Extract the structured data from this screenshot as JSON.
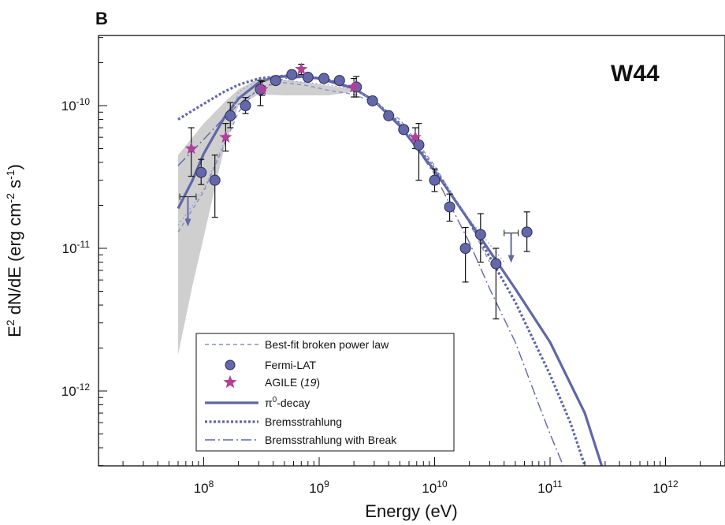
{
  "chart_data": {
    "type": "scatter",
    "panel_label": "B",
    "source_label": "W44",
    "xlabel": "Energy (eV)",
    "ylabel": "E² dN/dE (erg cm⁻² s⁻¹)",
    "ylabel_parts": {
      "base": "E",
      "sup1": "2",
      "mid": " dN/dE (erg cm",
      "sup2": "-2",
      "s": " s",
      "sup3": "-1",
      "end": ")"
    },
    "x_scale": "log",
    "y_scale": "log",
    "xlim": [
      12000000.0,
      2200000000000.0
    ],
    "ylim": [
      3e-13,
      5.2e-10
    ],
    "x_ticks": [
      {
        "value": 100000000.0,
        "base": "10",
        "exp": "8"
      },
      {
        "value": 1000000000.0,
        "base": "10",
        "exp": "9"
      },
      {
        "value": 10000000000.0,
        "base": "10",
        "exp": "10"
      },
      {
        "value": 100000000000.0,
        "base": "10",
        "exp": "11"
      },
      {
        "value": 1000000000000.0,
        "base": "10",
        "exp": "12"
      }
    ],
    "y_ticks": [
      {
        "value": 1e-10,
        "base": "10",
        "exp": "-10"
      },
      {
        "value": 1e-11,
        "base": "10",
        "exp": "-11"
      },
      {
        "value": 1e-12,
        "base": "10",
        "exp": "-12"
      }
    ],
    "grid": false,
    "legend_position": "bottom-left",
    "colors": {
      "fermi": "#6468a8",
      "fermi_edge": "#2a2d5a",
      "agile": "#b0409a",
      "model": "#6166a6",
      "band": "#cfcfcf",
      "errorbar": "#111111"
    },
    "series": [
      {
        "name": "Best-fit broken power law",
        "style": "thin-dashed",
        "x": [
          60000000.0,
          100000000.0,
          200000000.0,
          300000000.0,
          500000000.0,
          800000000.0,
          1200000000.0,
          2000000000.0,
          3000000000.0,
          5000000000.0,
          10000000000.0,
          20000000000.0,
          30000000000.0
        ],
        "y": [
          1.3e-11,
          2.5e-11,
          9e-11,
          1.35e-10,
          1.45e-10,
          1.38e-10,
          1.28e-10,
          1.2e-10,
          1.05e-10,
          8e-11,
          3.8e-11,
          1.5e-11,
          8e-12
        ]
      },
      {
        "name": "Fermi-LAT",
        "style": "marker-circle",
        "points": [
          {
            "x": 95000000.0,
            "y": 3.4e-11,
            "lo": 2.8e-11,
            "hi": 4.2e-11
          },
          {
            "x": 125000000.0,
            "y": 3e-11,
            "lo": 1.65e-11,
            "hi": 4.5e-11
          },
          {
            "x": 170000000.0,
            "y": 8.5e-11,
            "lo": 7e-11,
            "hi": 1.05e-10
          },
          {
            "x": 230000000.0,
            "y": 1e-10,
            "lo": 8.8e-11,
            "hi": 1.14e-10
          },
          {
            "x": 310000000.0,
            "y": 1.3e-10,
            "lo": 1e-10,
            "hi": 1.5e-10
          },
          {
            "x": 420000000.0,
            "y": 1.5e-10
          },
          {
            "x": 580000000.0,
            "y": 1.65e-10
          },
          {
            "x": 800000000.0,
            "y": 1.58e-10
          },
          {
            "x": 1100000000.0,
            "y": 1.55e-10
          },
          {
            "x": 1500000000.0,
            "y": 1.5e-10
          },
          {
            "x": 2100000000.0,
            "y": 1.35e-10,
            "lo": 1.15e-10,
            "hi": 1.6e-10
          },
          {
            "x": 2900000000.0,
            "y": 1.08e-10
          },
          {
            "x": 4000000000.0,
            "y": 8.5e-11
          },
          {
            "x": 5400000000.0,
            "y": 6.8e-11
          },
          {
            "x": 7300000000.0,
            "y": 5.3e-11,
            "lo": 3e-11,
            "hi": 7.5e-11
          },
          {
            "x": 10000000000.0,
            "y": 3e-11,
            "lo": 2.5e-11,
            "hi": 3.6e-11
          },
          {
            "x": 13500000000.0,
            "y": 1.95e-11,
            "lo": 1.55e-11,
            "hi": 2.4e-11
          },
          {
            "x": 18500000000.0,
            "y": 1e-11,
            "lo": 5.8e-12,
            "hi": 1.4e-11
          },
          {
            "x": 25000000000.0,
            "y": 1.25e-11,
            "lo": 8e-12,
            "hi": 1.75e-11
          },
          {
            "x": 34000000000.0,
            "y": 7.8e-12,
            "lo": 3.2e-12,
            "hi": 1e-11
          },
          {
            "x": 63000000000.0,
            "y": 1.3e-11,
            "lo": 9.5e-12,
            "hi": 1.8e-11
          }
        ],
        "upper_limits": [
          {
            "x": 73000000.0,
            "y": 2.3e-11,
            "xlo": 62000000.0,
            "xhi": 86000000.0
          },
          {
            "x": 46000000000.0,
            "y": 1.28e-11,
            "xlo": 40000000000.0,
            "xhi": 53000000000.0
          }
        ]
      },
      {
        "name": "AGILE (19)",
        "name_parts": {
          "text": "AGILE (",
          "ref": "19",
          "end": ")"
        },
        "style": "marker-star",
        "points": [
          {
            "x": 78000000.0,
            "y": 5e-11,
            "lo": 3.2e-11,
            "hi": 7e-11
          },
          {
            "x": 155000000.0,
            "y": 6e-11,
            "lo": 4.8e-11,
            "hi": 7.5e-11
          },
          {
            "x": 320000000.0,
            "y": 1.3e-10,
            "lo": 1.18e-10,
            "hi": 1.48e-10
          },
          {
            "x": 700000000.0,
            "y": 1.8e-10,
            "lo": 1.65e-10,
            "hi": 1.95e-10
          },
          {
            "x": 2000000000.0,
            "y": 1.35e-10,
            "lo": 1.15e-10,
            "hi": 1.55e-10
          },
          {
            "x": 6800000000.0,
            "y": 6e-11,
            "lo": 5e-11,
            "hi": 7e-11
          }
        ]
      },
      {
        "name": "π⁰-decay",
        "name_parts": {
          "text": "π",
          "sup": "0",
          "end": "-decay"
        },
        "style": "thick-solid",
        "x": [
          60000000.0,
          80000000.0,
          100000000.0,
          150000000.0,
          200000000.0,
          300000000.0,
          400000000.0,
          600000000.0,
          1000000000.0,
          2000000000.0,
          3000000000.0,
          5000000000.0,
          10000000000.0,
          20000000000.0,
          50000000000.0,
          100000000000.0,
          200000000000.0,
          280000000000.0
        ],
        "y": [
          1.9e-11,
          3e-11,
          4.6e-11,
          8.2e-11,
          1.12e-10,
          1.45e-10,
          1.58e-10,
          1.62e-10,
          1.55e-10,
          1.32e-10,
          1.08e-10,
          7.2e-11,
          3.5e-11,
          1.55e-11,
          5.2e-12,
          2.2e-12,
          7e-13,
          3e-13
        ]
      },
      {
        "name": "Bremsstrahlung",
        "style": "thick-dotted",
        "x": [
          60000000.0,
          100000000.0,
          150000000.0,
          200000000.0,
          300000000.0,
          500000000.0,
          800000000.0,
          1200000000.0,
          2000000000.0,
          3000000000.0,
          5000000000.0,
          10000000000.0,
          20000000000.0,
          50000000000.0,
          100000000000.0,
          150000000000.0,
          200000000000.0
        ],
        "y": [
          8e-11,
          1.03e-10,
          1.25e-10,
          1.4e-10,
          1.55e-10,
          1.62e-10,
          1.6e-10,
          1.52e-10,
          1.32e-10,
          1.08e-10,
          7.5e-11,
          3.6e-11,
          1.55e-11,
          4.2e-12,
          1.3e-12,
          6e-13,
          3e-13
        ]
      },
      {
        "name": "Bremsstrahlung with Break",
        "style": "dash-dot",
        "x": [
          60000000.0,
          100000000.0,
          150000000.0,
          200000000.0,
          300000000.0,
          500000000.0,
          800000000.0,
          1200000000.0,
          2000000000.0,
          3000000000.0,
          5000000000.0,
          10000000000.0,
          20000000000.0,
          30000000000.0,
          50000000000.0,
          80000000000.0,
          100000000000.0,
          130000000000.0
        ],
        "y": [
          3.8e-11,
          5.8e-11,
          8.2e-11,
          1.02e-10,
          1.3e-10,
          1.55e-10,
          1.58e-10,
          1.52e-10,
          1.32e-10,
          1.08e-10,
          7.5e-11,
          3.3e-11,
          1.1e-11,
          5.2e-12,
          2.2e-12,
          8e-13,
          5e-13,
          3e-13
        ]
      },
      {
        "style": "thin-dotted",
        "x": [
          60000000.0,
          80000000.0,
          100000000.0,
          150000000.0,
          200000000.0,
          300000000.0,
          500000000.0,
          800000000.0,
          1200000000.0,
          2000000000.0,
          3000000000.0,
          5000000000.0,
          10000000000.0,
          20000000000.0,
          40000000000.0
        ],
        "y": [
          1.45e-11,
          2e-11,
          2.6e-11,
          5.5e-11,
          1.25e-10,
          1.52e-10,
          1.5e-10,
          1.45e-10,
          1.4e-10,
          1.3e-10,
          1.08e-10,
          7.5e-11,
          3.6e-11,
          1.6e-11,
          8e-12
        ]
      }
    ],
    "confidence_band": {
      "x": [
        60000000.0,
        80000000.0,
        100000000.0,
        150000000.0,
        200000000.0,
        300000000.0,
        500000000.0,
        800000000.0,
        1200000000.0,
        2000000000.0
      ],
      "upper": [
        4.5e-11,
        6e-11,
        7.5e-11,
        1.05e-10,
        1.3e-10,
        1.55e-10,
        1.52e-10,
        1.45e-10,
        1.38e-10,
        1.3e-10
      ],
      "lower": [
        1.8e-12,
        5.5e-12,
        1.2e-11,
        5e-11,
        1e-10,
        1.2e-10,
        1.18e-10,
        1.18e-10,
        1.18e-10,
        1.25e-10
      ]
    }
  }
}
